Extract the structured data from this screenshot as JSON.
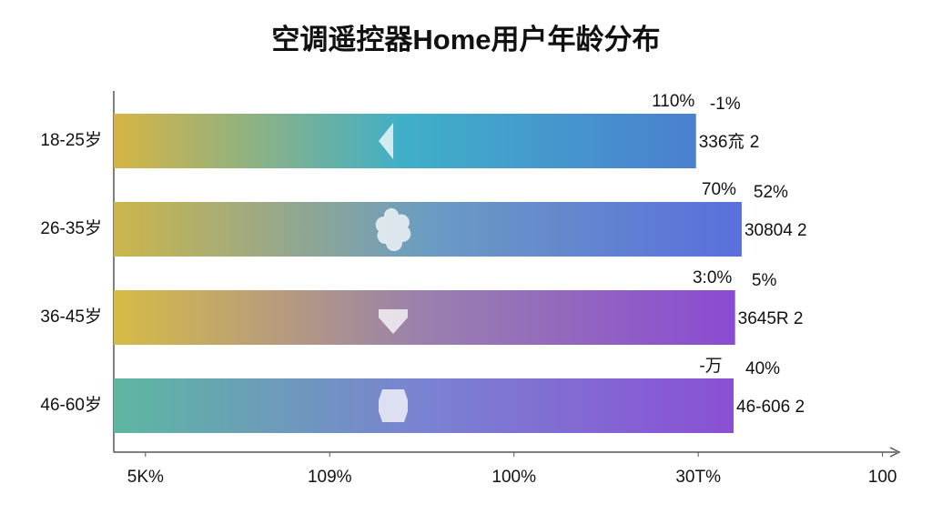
{
  "chart_data": {
    "type": "hbar",
    "title": "空调遥控器Home用户年龄分布",
    "categories": [
      "18-25岁",
      "26-35岁",
      "36-45岁",
      "46-60岁"
    ],
    "values": [
      74.7,
      80.9,
      80,
      79.8
    ],
    "bar_gradients": [
      [
        "#d6b443",
        "#3fafc9",
        "#4a80d0"
      ],
      [
        "#cbb64b",
        "#6a9cc2",
        "#5a6fdc"
      ],
      [
        "#d6bb45",
        "#9a80ae",
        "#8a4bd2"
      ],
      [
        "#5db7a0",
        "#7a82d2",
        "#8a50d4"
      ]
    ],
    "bar_labels": [
      [
        "110%",
        "-1%",
        "336㐬 2"
      ],
      [
        "70%",
        "52%",
        "30804 2"
      ],
      [
        "3:0%",
        "5%",
        "3645R 2"
      ],
      [
        "-万",
        "40%",
        "46-606 2"
      ]
    ],
    "xlim": [
      -4.3,
      101.9
    ],
    "xticks": [
      {
        "value": 0,
        "label": "5K%"
      },
      {
        "value": 25,
        "label": "109%"
      },
      {
        "value": 50,
        "label": "100%"
      },
      {
        "value": 75,
        "label": "30T%"
      },
      100
    ]
  }
}
